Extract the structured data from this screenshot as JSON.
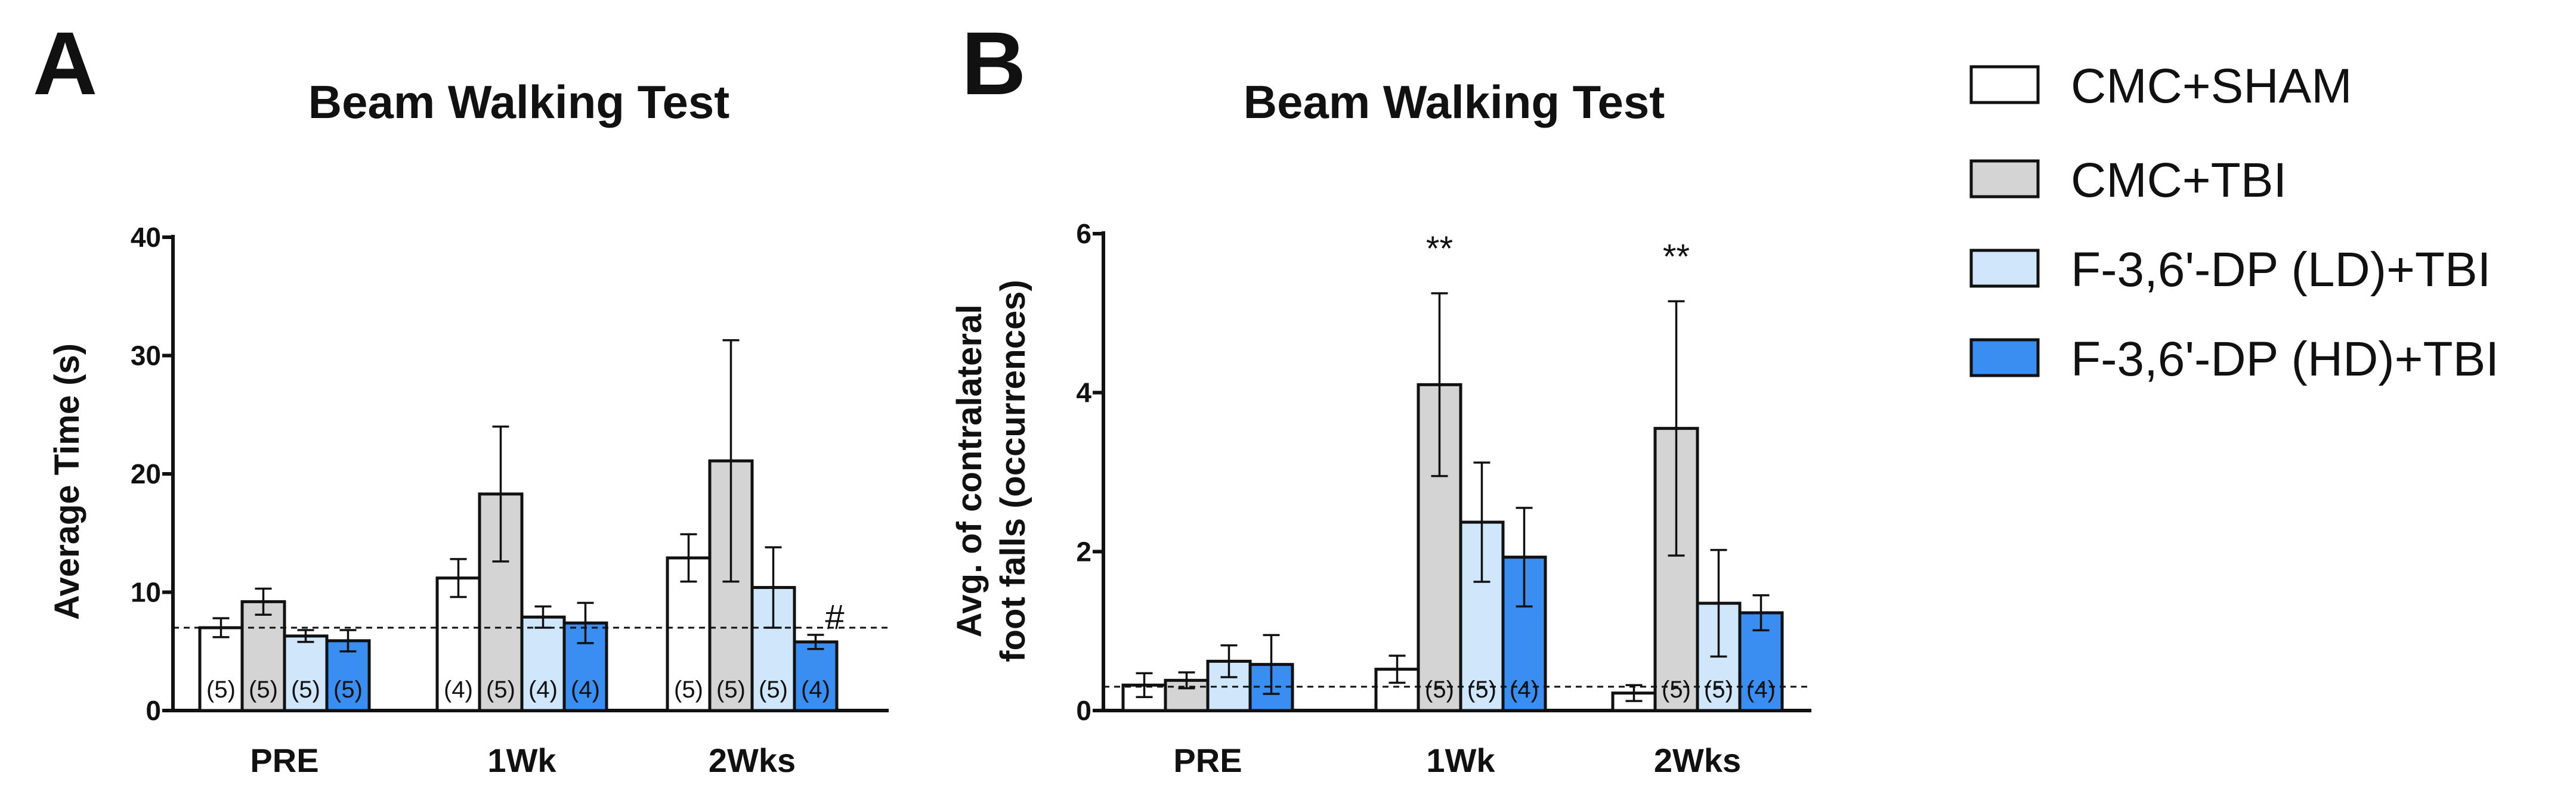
{
  "legend": {
    "items": [
      {
        "label": "CMC+SHAM",
        "color": "#ffffff"
      },
      {
        "label": "CMC+TBI",
        "color": "#d4d4d4"
      },
      {
        "label": "F-3,6'-DP (LD)+TBI",
        "color": "#cfe6fb"
      },
      {
        "label": "F-3,6'-DP (HD)+TBI",
        "color": "#3a8ef2"
      }
    ]
  },
  "chart_data": [
    {
      "panel": "A",
      "type": "bar",
      "title": "Beam Walking Test",
      "xlabel": "",
      "ylabel": "Average Time (s)",
      "ylim": [
        0,
        40
      ],
      "yticks": [
        0,
        10,
        20,
        30,
        40
      ],
      "reference_line": 7,
      "categories": [
        "PRE",
        "1Wk",
        "2Wks"
      ],
      "series": [
        {
          "name": "CMC+SHAM",
          "color": "#ffffff",
          "values": [
            7.0,
            11.2,
            12.9
          ],
          "errors": [
            0.8,
            1.6,
            2.0
          ],
          "n_labels": [
            "(5)",
            "(4)",
            "(5)"
          ]
        },
        {
          "name": "CMC+TBI",
          "color": "#d4d4d4",
          "values": [
            9.2,
            18.3,
            21.1
          ],
          "errors": [
            1.1,
            5.7,
            10.2
          ],
          "n_labels": [
            "(5)",
            "(5)",
            "(5)"
          ]
        },
        {
          "name": "F-3,6'-DP (LD)+TBI",
          "color": "#cfe6fb",
          "values": [
            6.3,
            7.9,
            10.4
          ],
          "errors": [
            0.5,
            0.9,
            3.4
          ],
          "n_labels": [
            "(5)",
            "(4)",
            "(5)"
          ]
        },
        {
          "name": "F-3,6'-DP (HD)+TBI",
          "color": "#3a8ef2",
          "values": [
            5.9,
            7.4,
            5.8
          ],
          "errors": [
            0.9,
            1.7,
            0.6
          ],
          "n_labels": [
            "(5)",
            "(4)",
            "(4)"
          ]
        }
      ],
      "annotations": [
        {
          "text": "#",
          "category": "2Wks",
          "series": "F-3,6'-DP (HD)+TBI"
        }
      ]
    },
    {
      "panel": "B",
      "type": "bar",
      "title": "Beam Walking Test",
      "xlabel": "",
      "ylabel_lines": [
        "Avg. of contralateral",
        "foot falls (occurrences)"
      ],
      "ylim": [
        0,
        6
      ],
      "yticks": [
        0,
        2,
        4,
        6
      ],
      "reference_line": 0.3,
      "categories": [
        "PRE",
        "1Wk",
        "2Wks"
      ],
      "series": [
        {
          "name": "CMC+SHAM",
          "color": "#ffffff",
          "values": [
            0.32,
            0.52,
            0.22
          ],
          "errors": [
            0.15,
            0.17,
            0.1
          ],
          "n_labels": [
            "",
            "",
            ""
          ]
        },
        {
          "name": "CMC+TBI",
          "color": "#d4d4d4",
          "values": [
            0.38,
            4.1,
            3.55
          ],
          "errors": [
            0.1,
            1.15,
            1.6
          ],
          "n_labels": [
            "",
            "(5)",
            "(5)"
          ]
        },
        {
          "name": "F-3,6'-DP (LD)+TBI",
          "color": "#cfe6fb",
          "values": [
            0.62,
            2.37,
            1.35
          ],
          "errors": [
            0.2,
            0.75,
            0.67
          ],
          "n_labels": [
            "",
            "(5)",
            "(5)"
          ]
        },
        {
          "name": "F-3,6'-DP (HD)+TBI",
          "color": "#3a8ef2",
          "values": [
            0.58,
            1.93,
            1.23
          ],
          "errors": [
            0.37,
            0.62,
            0.22
          ],
          "n_labels": [
            "",
            "(4)",
            "(4)"
          ]
        }
      ],
      "annotations": [
        {
          "text": "**",
          "category": "1Wk",
          "series": "CMC+TBI"
        },
        {
          "text": "**",
          "category": "2Wks",
          "series": "CMC+TBI"
        }
      ]
    }
  ]
}
